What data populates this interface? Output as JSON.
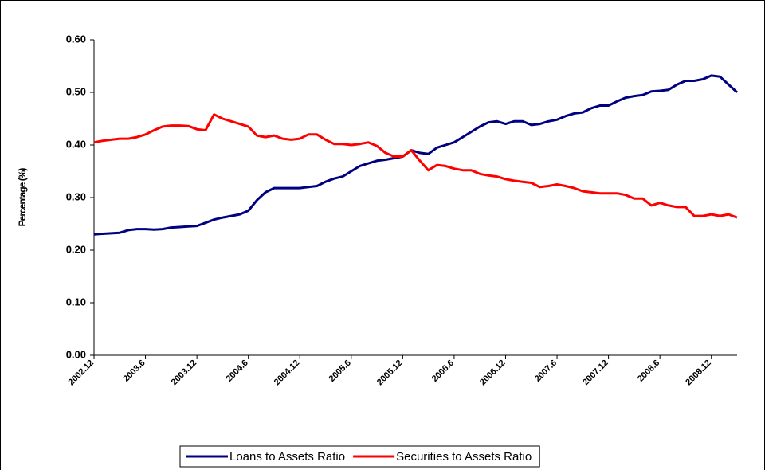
{
  "chart_data": {
    "type": "line",
    "y_label": "Percentage (%)",
    "categories": [
      "2002.12",
      null,
      null,
      null,
      null,
      null,
      "2003.6",
      null,
      null,
      null,
      null,
      null,
      "2003.12",
      null,
      null,
      null,
      null,
      null,
      "2004.6",
      null,
      null,
      null,
      null,
      null,
      "2004.12",
      null,
      null,
      null,
      null,
      null,
      "2005.6",
      null,
      null,
      null,
      null,
      null,
      "2005.12",
      null,
      null,
      null,
      null,
      null,
      "2006.6",
      null,
      null,
      null,
      null,
      null,
      "2006.12",
      null,
      null,
      null,
      null,
      null,
      "2007.6",
      null,
      null,
      null,
      null,
      null,
      "2007.12",
      null,
      null,
      null,
      null,
      null,
      "2008.6",
      null,
      null,
      null,
      null,
      null,
      "2008.12",
      null,
      null,
      null
    ],
    "series": [
      {
        "name": "Loans to Assets Ratio",
        "color": "#000080",
        "values": [
          0.23,
          0.231,
          0.232,
          0.233,
          0.238,
          0.24,
          0.24,
          0.239,
          0.24,
          0.243,
          0.244,
          0.245,
          0.246,
          0.252,
          0.258,
          0.262,
          0.265,
          0.268,
          0.275,
          0.295,
          0.31,
          0.318,
          0.318,
          0.318,
          0.318,
          0.32,
          0.322,
          0.33,
          0.336,
          0.34,
          0.35,
          0.36,
          0.365,
          0.37,
          0.372,
          0.375,
          0.378,
          0.39,
          0.385,
          0.383,
          0.395,
          0.4,
          0.405,
          0.415,
          0.425,
          0.435,
          0.443,
          0.445,
          0.44,
          0.445,
          0.445,
          0.438,
          0.44,
          0.445,
          0.448,
          0.455,
          0.46,
          0.462,
          0.47,
          0.475,
          0.475,
          0.483,
          0.49,
          0.493,
          0.495,
          0.502,
          0.503,
          0.505,
          0.515,
          0.522,
          0.522,
          0.525,
          0.532,
          0.53,
          0.515,
          0.5
        ]
      },
      {
        "name": "Securities to Assets Ratio",
        "color": "#ff0000",
        "values": [
          0.405,
          0.408,
          0.41,
          0.412,
          0.412,
          0.415,
          0.42,
          0.428,
          0.435,
          0.437,
          0.437,
          0.436,
          0.43,
          0.428,
          0.458,
          0.45,
          0.445,
          0.44,
          0.435,
          0.418,
          0.415,
          0.418,
          0.412,
          0.41,
          0.412,
          0.42,
          0.42,
          0.41,
          0.402,
          0.402,
          0.4,
          0.402,
          0.405,
          0.398,
          0.385,
          0.378,
          0.378,
          0.39,
          0.37,
          0.352,
          0.362,
          0.36,
          0.355,
          0.352,
          0.352,
          0.345,
          0.342,
          0.34,
          0.335,
          0.332,
          0.33,
          0.328,
          0.32,
          0.322,
          0.325,
          0.322,
          0.318,
          0.312,
          0.31,
          0.308,
          0.308,
          0.308,
          0.305,
          0.298,
          0.298,
          0.285,
          0.29,
          0.285,
          0.282,
          0.282,
          0.265,
          0.265,
          0.268,
          0.265,
          0.268,
          0.262
        ]
      }
    ],
    "ylim": [
      0,
      0.6
    ],
    "yticks": [
      {
        "value": 0,
        "label": "0.00"
      },
      {
        "value": 0.1,
        "label": "0.10"
      },
      {
        "value": 0.2,
        "label": "0.20"
      },
      {
        "value": 0.3,
        "label": "0.30"
      },
      {
        "value": 0.4,
        "label": "0.40"
      },
      {
        "value": 0.5,
        "label": "0.50"
      },
      {
        "value": 0.6,
        "label": "0.60"
      }
    ],
    "legend": "bottom"
  }
}
